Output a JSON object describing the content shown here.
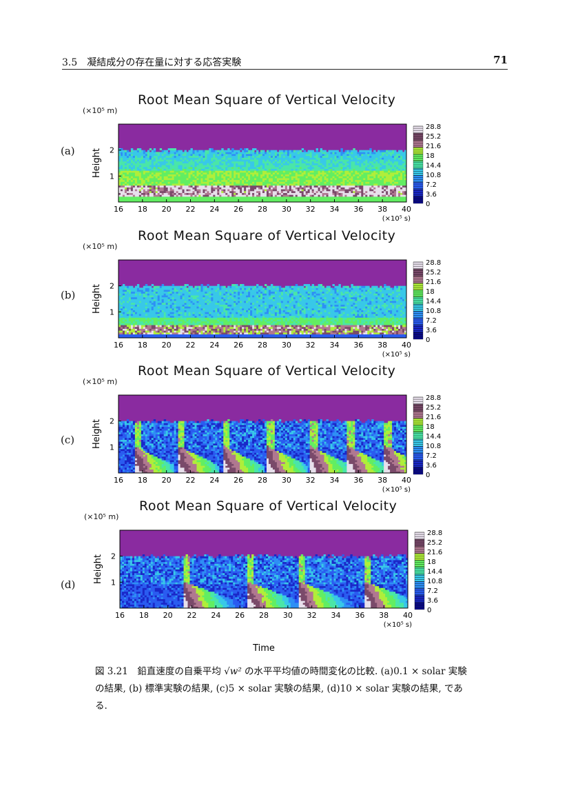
{
  "header": {
    "section": "3.5　凝結成分の存在量に対する応答実験",
    "page_number": "71"
  },
  "colors": {
    "background_fill": "#8a2ba0",
    "colorbar": [
      "#0b0b8a",
      "#1a28c8",
      "#2a5cf0",
      "#2e8ff5",
      "#38c8e8",
      "#4ae6a8",
      "#62ee62",
      "#b0ee3a",
      "#b07890",
      "#7a4a6a",
      "#e8e0ec"
    ]
  },
  "figures": [
    {
      "panel": "(a)",
      "chart_data": {
        "type": "heatmap",
        "title": "Root Mean Square of Vertical Velocity",
        "xlabel": "",
        "ylabel": "Height",
        "x_unit": "(×10⁵ s)",
        "y_unit": "(×10⁵ m)",
        "xlim": [
          16,
          40
        ],
        "ylim": [
          0,
          3
        ],
        "x_ticks": [
          "16",
          "18",
          "20",
          "22",
          "24",
          "26",
          "28",
          "30",
          "32",
          "34",
          "36",
          "38",
          "40"
        ],
        "y_ticks": [
          "1",
          "2"
        ],
        "colorbar_ticks": [
          "28.8",
          "25.2",
          "21.6",
          "18",
          "14.4",
          "10.8",
          "7.2",
          "3.6",
          "0"
        ],
        "experiment": "0.1 × solar",
        "events": []
      }
    },
    {
      "panel": "(b)",
      "chart_data": {
        "type": "heatmap",
        "title": "Root Mean Square of Vertical Velocity",
        "xlabel": "",
        "ylabel": "Height",
        "x_unit": "(×10⁵ s)",
        "y_unit": "(×10⁵ m)",
        "xlim": [
          16,
          40
        ],
        "ylim": [
          0,
          3
        ],
        "x_ticks": [
          "16",
          "18",
          "20",
          "22",
          "24",
          "26",
          "28",
          "30",
          "32",
          "34",
          "36",
          "38",
          "40"
        ],
        "y_ticks": [
          "1",
          "2"
        ],
        "colorbar_ticks": [
          "28.8",
          "25.2",
          "21.6",
          "18",
          "14.4",
          "10.8",
          "7.2",
          "3.6",
          "0"
        ],
        "experiment": "標準",
        "events": []
      }
    },
    {
      "panel": "(c)",
      "chart_data": {
        "type": "heatmap",
        "title": "Root Mean Square of Vertical Velocity",
        "xlabel": "",
        "ylabel": "Height",
        "x_unit": "(×10⁵ s)",
        "y_unit": "(×10⁵ m)",
        "xlim": [
          16,
          40
        ],
        "ylim": [
          0,
          3
        ],
        "x_ticks": [
          "16",
          "18",
          "20",
          "22",
          "24",
          "26",
          "28",
          "30",
          "32",
          "34",
          "36",
          "38",
          "40"
        ],
        "y_ticks": [
          "1",
          "2"
        ],
        "colorbar_ticks": [
          "28.8",
          "25.2",
          "21.6",
          "18",
          "14.4",
          "10.8",
          "7.2",
          "3.6",
          "0"
        ],
        "experiment": "5 × solar",
        "events": [
          17.5,
          21.2,
          24.9,
          28.6,
          32.2,
          35.3,
          38.4
        ]
      }
    },
    {
      "panel": "(d)",
      "chart_data": {
        "type": "heatmap",
        "title": "Root Mean Square of Vertical Velocity",
        "xlabel": "Time",
        "ylabel": "Height",
        "x_unit": "(×10⁵ s)",
        "y_unit": "(×10⁵ m)",
        "xlim": [
          16,
          40
        ],
        "ylim": [
          0,
          3
        ],
        "x_ticks": [
          "16",
          "18",
          "20",
          "22",
          "24",
          "26",
          "28",
          "30",
          "32",
          "34",
          "36",
          "38",
          "40"
        ],
        "y_ticks": [
          "1",
          "2"
        ],
        "colorbar_ticks": [
          "28.8",
          "25.2",
          "21.6",
          "18",
          "14.4",
          "10.8",
          "7.2",
          "3.6",
          "0"
        ],
        "experiment": "10 × solar",
        "events": [
          21.5,
          26.8,
          31.1,
          36.6
        ]
      }
    }
  ],
  "caption": {
    "label": "図 3.21　鉛直速度の自乗平均",
    "math": "√w²",
    "text": "の水平平均値の時間変化の比較. (a)0.1 × solar 実験の結果, (b) 標準実験の結果, (c)5 × solar 実験の結果, (d)10 × solar 実験の結果, である."
  }
}
